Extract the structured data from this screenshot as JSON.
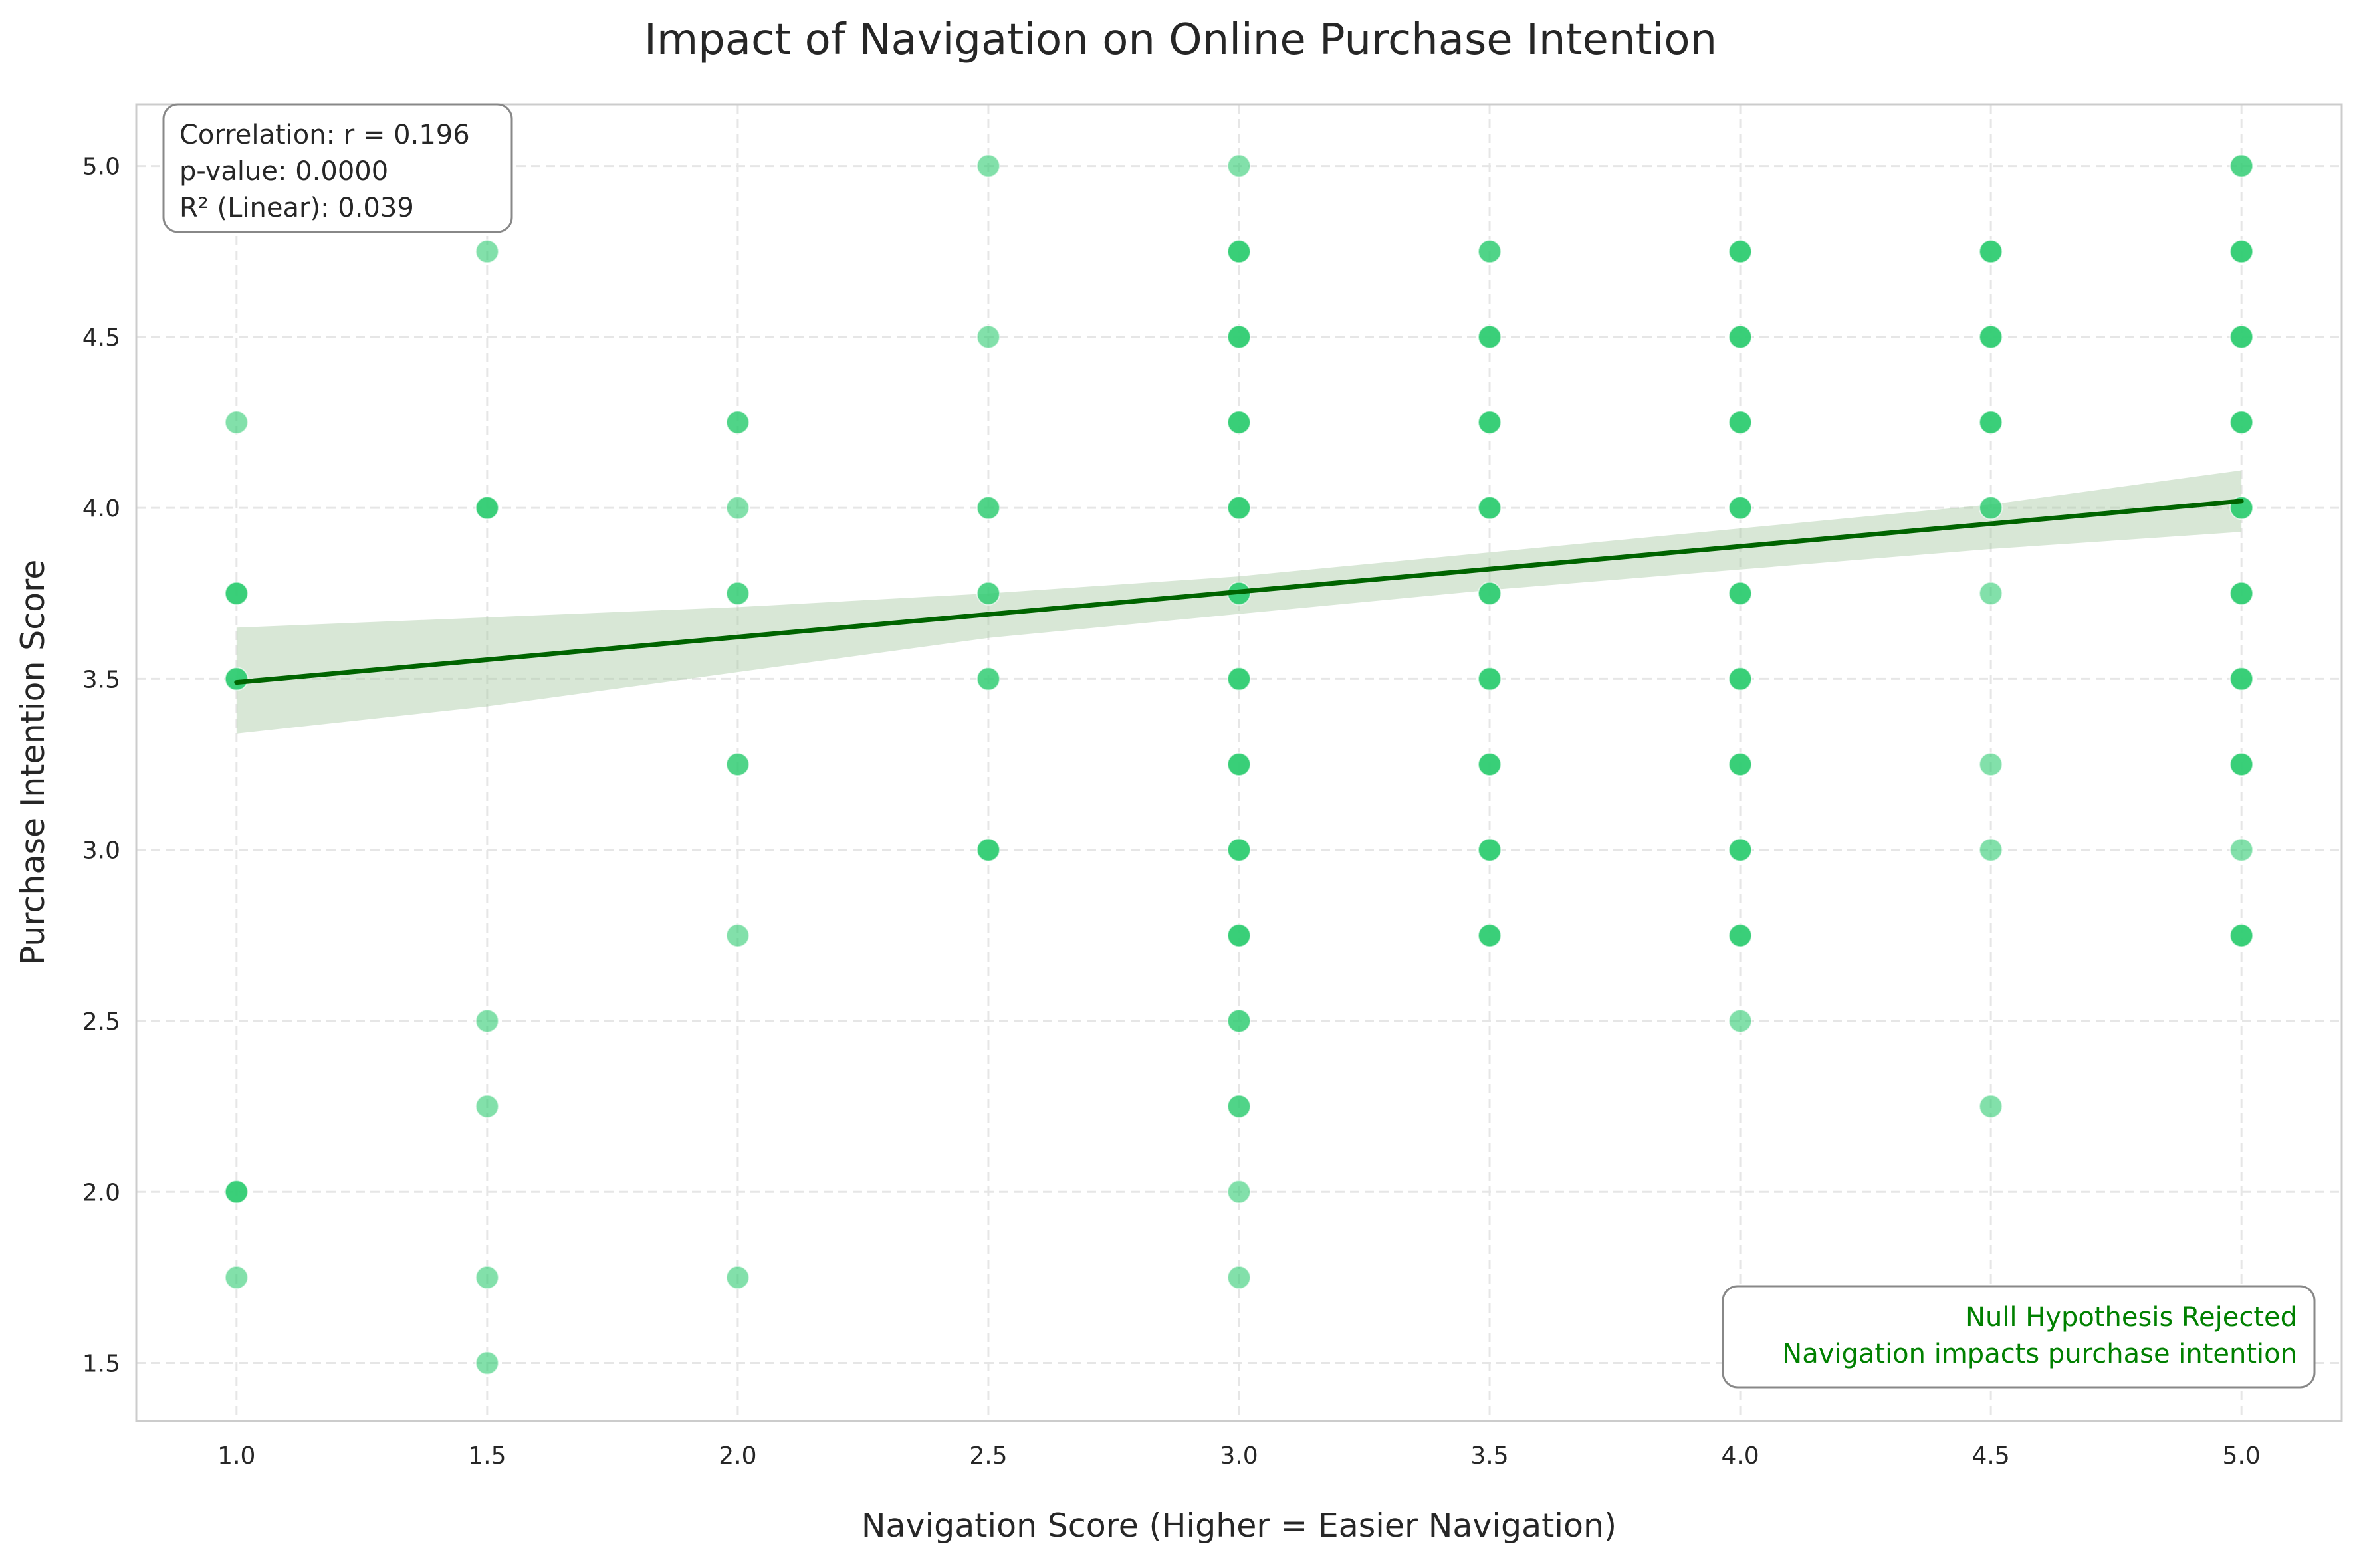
{
  "chart_data": {
    "type": "scatter",
    "title": "Impact of Navigation on Online Purchase Intention",
    "xlabel": "Navigation Score (Higher = Easier Navigation)",
    "ylabel": "Purchase Intention Score",
    "xlim": [
      0.8,
      5.2
    ],
    "ylim": [
      1.33,
      5.18
    ],
    "xticks": [
      1.0,
      1.5,
      2.0,
      2.5,
      3.0,
      3.5,
      4.0,
      4.5,
      5.0
    ],
    "yticks": [
      1.5,
      2.0,
      2.5,
      3.0,
      3.5,
      4.0,
      4.5,
      5.0
    ],
    "xtick_labels": [
      "1.0",
      "1.5",
      "2.0",
      "2.5",
      "3.0",
      "3.5",
      "4.0",
      "4.5",
      "5.0"
    ],
    "ytick_labels": [
      "1.5",
      "2.0",
      "2.5",
      "3.0",
      "3.5",
      "4.0",
      "4.5",
      "5.0"
    ],
    "grid": true,
    "point_color": "#2ecc71",
    "line_color": "#006400",
    "band_color": "#a9c9a4",
    "points": [
      {
        "x": 1.0,
        "y": 4.25,
        "n": 1
      },
      {
        "x": 1.0,
        "y": 3.75,
        "n": 3
      },
      {
        "x": 1.0,
        "y": 3.5,
        "n": 3
      },
      {
        "x": 1.0,
        "y": 2.0,
        "n": 3
      },
      {
        "x": 1.0,
        "y": 1.75,
        "n": 1
      },
      {
        "x": 1.5,
        "y": 4.75,
        "n": 1
      },
      {
        "x": 1.5,
        "y": 4.0,
        "n": 3
      },
      {
        "x": 1.5,
        "y": 2.5,
        "n": 1
      },
      {
        "x": 1.5,
        "y": 2.25,
        "n": 1
      },
      {
        "x": 1.5,
        "y": 1.75,
        "n": 1
      },
      {
        "x": 1.5,
        "y": 1.5,
        "n": 1
      },
      {
        "x": 2.0,
        "y": 4.25,
        "n": 2
      },
      {
        "x": 2.0,
        "y": 4.0,
        "n": 1
      },
      {
        "x": 2.0,
        "y": 3.75,
        "n": 2
      },
      {
        "x": 2.0,
        "y": 3.25,
        "n": 2
      },
      {
        "x": 2.0,
        "y": 2.75,
        "n": 1
      },
      {
        "x": 2.0,
        "y": 1.75,
        "n": 1
      },
      {
        "x": 2.5,
        "y": 5.0,
        "n": 1
      },
      {
        "x": 2.5,
        "y": 4.5,
        "n": 1
      },
      {
        "x": 2.5,
        "y": 4.0,
        "n": 2
      },
      {
        "x": 2.5,
        "y": 3.75,
        "n": 2
      },
      {
        "x": 2.5,
        "y": 3.5,
        "n": 2
      },
      {
        "x": 2.5,
        "y": 3.0,
        "n": 3
      },
      {
        "x": 3.0,
        "y": 5.0,
        "n": 1
      },
      {
        "x": 3.0,
        "y": 4.75,
        "n": 4
      },
      {
        "x": 3.0,
        "y": 4.5,
        "n": 4
      },
      {
        "x": 3.0,
        "y": 4.25,
        "n": 4
      },
      {
        "x": 3.0,
        "y": 4.0,
        "n": 4
      },
      {
        "x": 3.0,
        "y": 3.75,
        "n": 5
      },
      {
        "x": 3.0,
        "y": 3.5,
        "n": 4
      },
      {
        "x": 3.0,
        "y": 3.25,
        "n": 4
      },
      {
        "x": 3.0,
        "y": 3.0,
        "n": 4
      },
      {
        "x": 3.0,
        "y": 2.75,
        "n": 4
      },
      {
        "x": 3.0,
        "y": 2.5,
        "n": 2
      },
      {
        "x": 3.0,
        "y": 2.25,
        "n": 2
      },
      {
        "x": 3.0,
        "y": 2.0,
        "n": 1
      },
      {
        "x": 3.0,
        "y": 1.75,
        "n": 1
      },
      {
        "x": 3.5,
        "y": 4.75,
        "n": 2
      },
      {
        "x": 3.5,
        "y": 4.5,
        "n": 3
      },
      {
        "x": 3.5,
        "y": 4.25,
        "n": 4
      },
      {
        "x": 3.5,
        "y": 4.0,
        "n": 4
      },
      {
        "x": 3.5,
        "y": 3.75,
        "n": 3
      },
      {
        "x": 3.5,
        "y": 3.5,
        "n": 4
      },
      {
        "x": 3.5,
        "y": 3.25,
        "n": 4
      },
      {
        "x": 3.5,
        "y": 3.0,
        "n": 4
      },
      {
        "x": 3.5,
        "y": 2.75,
        "n": 3
      },
      {
        "x": 4.0,
        "y": 4.75,
        "n": 4
      },
      {
        "x": 4.0,
        "y": 4.5,
        "n": 4
      },
      {
        "x": 4.0,
        "y": 4.25,
        "n": 4
      },
      {
        "x": 4.0,
        "y": 4.0,
        "n": 3
      },
      {
        "x": 4.0,
        "y": 3.75,
        "n": 4
      },
      {
        "x": 4.0,
        "y": 3.5,
        "n": 4
      },
      {
        "x": 4.0,
        "y": 3.25,
        "n": 4
      },
      {
        "x": 4.0,
        "y": 3.0,
        "n": 4
      },
      {
        "x": 4.0,
        "y": 2.75,
        "n": 3
      },
      {
        "x": 4.0,
        "y": 2.5,
        "n": 1
      },
      {
        "x": 4.5,
        "y": 4.75,
        "n": 3
      },
      {
        "x": 4.5,
        "y": 4.5,
        "n": 3
      },
      {
        "x": 4.5,
        "y": 4.25,
        "n": 3
      },
      {
        "x": 4.5,
        "y": 4.0,
        "n": 2
      },
      {
        "x": 4.5,
        "y": 3.75,
        "n": 1
      },
      {
        "x": 4.5,
        "y": 3.25,
        "n": 1
      },
      {
        "x": 4.5,
        "y": 3.0,
        "n": 1
      },
      {
        "x": 4.5,
        "y": 2.25,
        "n": 1
      },
      {
        "x": 5.0,
        "y": 5.0,
        "n": 2
      },
      {
        "x": 5.0,
        "y": 4.75,
        "n": 5
      },
      {
        "x": 5.0,
        "y": 4.5,
        "n": 5
      },
      {
        "x": 5.0,
        "y": 4.25,
        "n": 5
      },
      {
        "x": 5.0,
        "y": 4.0,
        "n": 3
      },
      {
        "x": 5.0,
        "y": 3.75,
        "n": 5
      },
      {
        "x": 5.0,
        "y": 3.5,
        "n": 5
      },
      {
        "x": 5.0,
        "y": 3.25,
        "n": 5
      },
      {
        "x": 5.0,
        "y": 3.0,
        "n": 1
      },
      {
        "x": 5.0,
        "y": 2.75,
        "n": 4
      }
    ],
    "regression_line": {
      "x": [
        1.0,
        5.0
      ],
      "y": [
        3.49,
        4.02
      ]
    },
    "confidence_band": {
      "x": [
        1.0,
        1.5,
        2.0,
        2.5,
        3.0,
        3.5,
        4.0,
        4.5,
        5.0
      ],
      "upper": [
        3.65,
        3.68,
        3.71,
        3.75,
        3.8,
        3.87,
        3.94,
        4.01,
        4.11
      ],
      "lower": [
        3.34,
        3.42,
        3.52,
        3.62,
        3.69,
        3.76,
        3.82,
        3.88,
        3.93
      ]
    },
    "annotations": {
      "stats_lines": [
        "Correlation: r = 0.196",
        "p-value: 0.0000",
        "R² (Linear): 0.039"
      ],
      "stats_placement": "top-left",
      "conclusion_lines": [
        "Null Hypothesis Rejected",
        "Navigation impacts purchase intention"
      ],
      "conclusion_placement": "bottom-right",
      "conclusion_color": "#008000"
    }
  }
}
